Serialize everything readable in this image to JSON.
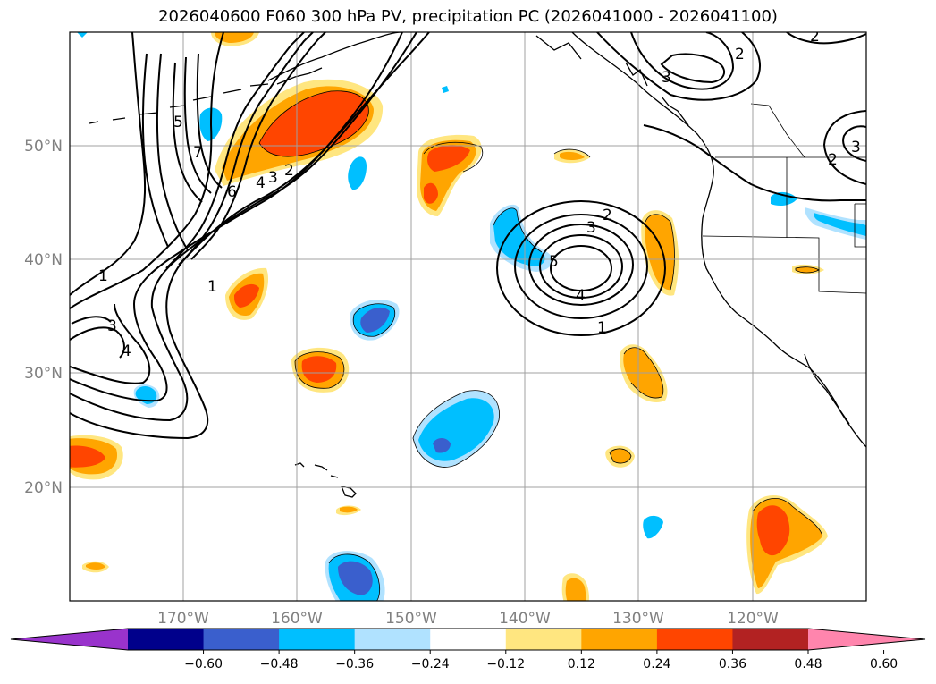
{
  "title": "2026040600 F060 300 hPa PV, precipitation PC (2026041000 - 2026041100)",
  "map": {
    "lon_range": [
      -180,
      -110
    ],
    "lat_range": [
      10,
      60
    ],
    "lat_ticks": [
      {
        "value": 50,
        "label": "50°N"
      },
      {
        "value": 40,
        "label": "40°N"
      },
      {
        "value": 30,
        "label": "30°N"
      },
      {
        "value": 20,
        "label": "20°N"
      }
    ],
    "lon_ticks": [
      {
        "value": -170,
        "label": "170°W"
      },
      {
        "value": -160,
        "label": "160°W"
      },
      {
        "value": -150,
        "label": "150°W"
      },
      {
        "value": -140,
        "label": "140°W"
      },
      {
        "value": -130,
        "label": "130°W"
      },
      {
        "value": -120,
        "label": "120°W"
      }
    ],
    "grid": true
  },
  "colorbar": {
    "orientation": "horizontal",
    "extend": "both",
    "colors": [
      "#9933cc",
      "#00008b",
      "#3a5fcd",
      "#00bfff",
      "#b0e2ff",
      "#ffffff",
      "#ffe680",
      "#ffa500",
      "#ff4500",
      "#b22222",
      "#ff85ad"
    ],
    "ticks": [
      "−0.60",
      "−0.48",
      "−0.36",
      "−0.24",
      "−0.12",
      "0.12",
      "0.24",
      "0.36",
      "0.48",
      "0.60"
    ]
  },
  "contour_labels": [
    "1",
    "2",
    "3",
    "4",
    "5",
    "6",
    "7"
  ]
}
